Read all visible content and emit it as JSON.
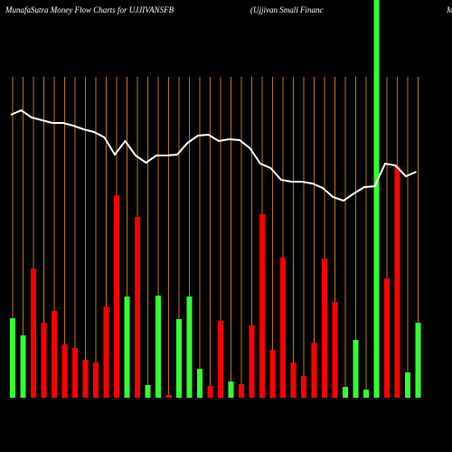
{
  "chart_data": {
    "type": "bar",
    "title": "MunafaSutra  Money Flow  Charts for UJJIVANSFB",
    "subtitle": "(Ujjivan  Small  Financ",
    "corner_text": "M",
    "ylim": [
      0,
      440
    ],
    "grid": true,
    "grid_color": "#b8731a",
    "line_color": "#ffffff",
    "values": [
      88,
      69,
      143,
      83,
      96,
      59,
      55,
      42,
      39,
      101,
      224,
      112,
      200,
      14,
      113,
      3,
      87,
      112,
      32,
      13,
      85,
      18,
      15,
      80,
      203,
      53,
      155,
      39,
      24,
      61,
      154,
      106,
      12,
      64,
      9,
      440,
      132,
      256,
      28,
      83
    ],
    "colors": [
      "#33ff33",
      "#33ff33",
      "#ff0000",
      "#ff0000",
      "#ff0000",
      "#ff0000",
      "#ff0000",
      "#ff0000",
      "#ff0000",
      "#ff0000",
      "#ff0000",
      "#33ff33",
      "#ff0000",
      "#33ff33",
      "#33ff33",
      "#ff0000",
      "#33ff33",
      "#33ff33",
      "#33ff33",
      "#ff0000",
      "#ff0000",
      "#33ff33",
      "#ff0000",
      "#ff0000",
      "#ff0000",
      "#ff0000",
      "#ff0000",
      "#ff0000",
      "#ff0000",
      "#ff0000",
      "#ff0000",
      "#ff0000",
      "#33ff33",
      "#33ff33",
      "#33ff33",
      "#33ff33",
      "#ff0000",
      "#ff0000",
      "#33ff33",
      "#33ff33"
    ],
    "line_values": [
      313,
      318,
      310,
      307,
      304,
      304,
      301,
      297,
      294,
      288,
      269,
      284,
      268,
      260,
      268,
      268,
      269,
      282,
      290,
      291,
      284,
      286,
      285,
      276,
      259,
      254,
      241,
      239,
      239,
      237,
      232,
      222,
      218,
      226,
      233,
      234,
      259,
      257,
      245,
      250
    ]
  }
}
